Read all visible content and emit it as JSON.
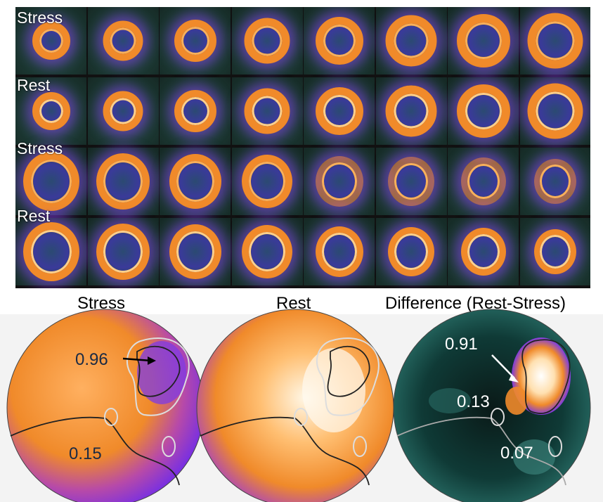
{
  "grid": {
    "rows": [
      {
        "label": "Stress",
        "type": "short-axis-stress"
      },
      {
        "label": "Rest",
        "type": "short-axis-rest"
      },
      {
        "label": "Stress",
        "type": "short-axis-stress"
      },
      {
        "label": "Rest",
        "type": "short-axis-rest"
      }
    ],
    "columns": 8
  },
  "polar_maps": [
    {
      "title": "Stress",
      "annotations": [
        "0.96",
        "0.15"
      ]
    },
    {
      "title": "Rest",
      "annotations": []
    },
    {
      "title": "Difference (Rest-Stress)",
      "annotations": [
        "0.91",
        "0.13",
        "0.07"
      ]
    }
  ],
  "colors": {
    "hot": "#fff4d8",
    "orange": "#f08a2a",
    "purple": "#8a3cf0",
    "teal": "#2f6a60",
    "black": "#000000"
  }
}
